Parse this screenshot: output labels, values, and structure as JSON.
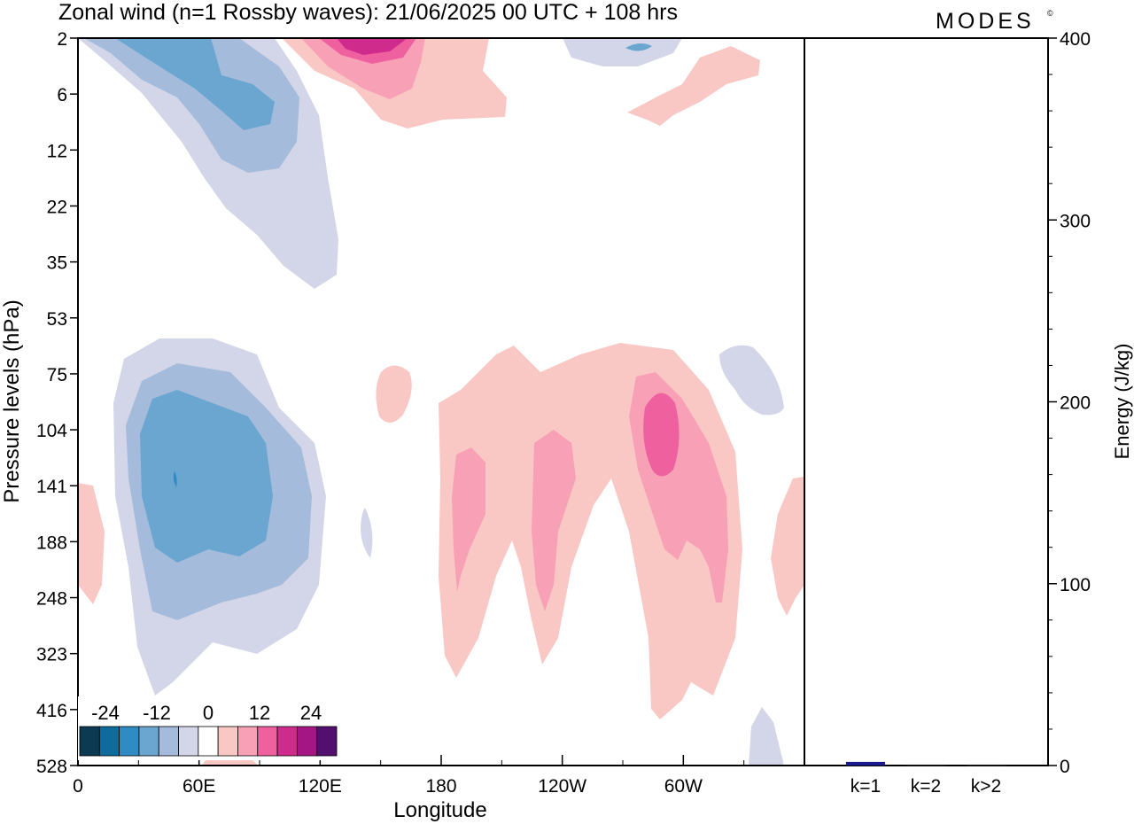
{
  "header": {
    "title": "Zonal wind (n=1 Rossby waves):  21/06/2025  00 UTC  + 108 hrs",
    "logo": "MODES",
    "logo_mark": "©"
  },
  "chart_data": [
    {
      "type": "heatmap",
      "title": "Zonal wind (n=1 Rossby waves):  21/06/2025  00 UTC  + 108 hrs",
      "xlabel": "Longitude",
      "ylabel": "Pressure levels (hPa)",
      "x_ticks": [
        "0",
        "60E",
        "120E",
        "180",
        "120W",
        "60W"
      ],
      "y_ticks": [
        "2",
        "6",
        "12",
        "22",
        "35",
        "53",
        "75",
        "104",
        "141",
        "188",
        "248",
        "323",
        "416",
        "528"
      ],
      "colorbar": {
        "tick_labels": [
          "-24",
          "-12",
          "0",
          "12",
          "24"
        ],
        "levels": [
          -30,
          -25,
          -20,
          -15,
          -10,
          -5,
          0,
          5,
          10,
          15,
          20,
          25,
          30
        ],
        "colors": [
          "#0c3a52",
          "#0f6b9c",
          "#2e8cc2",
          "#6aa6cf",
          "#a4bbdb",
          "#d3d6e8",
          "#ffffff",
          "#f9c8c4",
          "#f7a0b6",
          "#ef609e",
          "#cf2b8c",
          "#a31683",
          "#520f6e"
        ]
      },
      "regions": [
        {
          "name": "upper-west-negative",
          "sign": "negative",
          "max_level": 3
        },
        {
          "name": "upper-central-positive",
          "sign": "positive",
          "max_level": 4
        },
        {
          "name": "upper-east-positive",
          "sign": "positive",
          "max_level": 1
        },
        {
          "name": "lower-west-negative",
          "sign": "negative",
          "max_level": 3
        },
        {
          "name": "lower-central-positive",
          "sign": "positive",
          "max_level": 3
        }
      ]
    },
    {
      "type": "bar",
      "ylabel": "Energy (J/kg)",
      "categories": [
        "k=1",
        "k=2",
        "k>2"
      ],
      "values": [
        2,
        0.5,
        0.5
      ],
      "ylim": [
        0,
        400
      ],
      "y_ticks": [
        "0",
        "100",
        "200",
        "300",
        "400"
      ],
      "bar_color": "#1a1a8c"
    }
  ]
}
